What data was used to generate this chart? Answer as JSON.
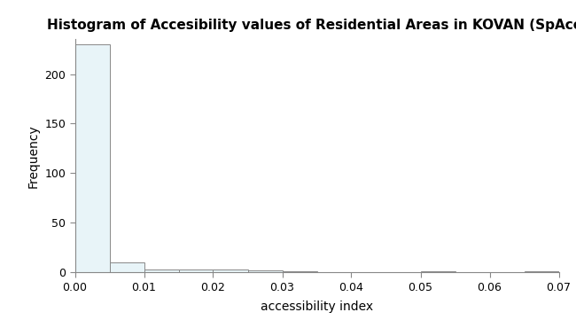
{
  "title": "Histogram of Accesibility values of Residential Areas in KOVAN (SpAcc)",
  "xlabel": "accessibility index",
  "ylabel": "Frequency",
  "xlim": [
    0.0,
    0.07
  ],
  "ylim": [
    0,
    235
  ],
  "yticks": [
    0,
    50,
    100,
    150,
    200
  ],
  "xticks": [
    0.0,
    0.01,
    0.02,
    0.03,
    0.04,
    0.05,
    0.06,
    0.07
  ],
  "bar_edges": [
    0.0,
    0.005,
    0.01,
    0.015,
    0.02,
    0.025,
    0.03,
    0.035,
    0.04,
    0.045,
    0.05,
    0.055,
    0.06,
    0.065,
    0.07
  ],
  "bar_heights": [
    230,
    10,
    3,
    3,
    3,
    2,
    1,
    0,
    0,
    0,
    1,
    0,
    0,
    1
  ],
  "bar_facecolor": "#e8f4f8",
  "bar_edgecolor": "#888888",
  "background_color": "#ffffff",
  "title_fontsize": 11,
  "axis_fontsize": 10,
  "tick_fontsize": 9,
  "figsize": [
    6.5,
    3.7
  ],
  "dpi": 100
}
